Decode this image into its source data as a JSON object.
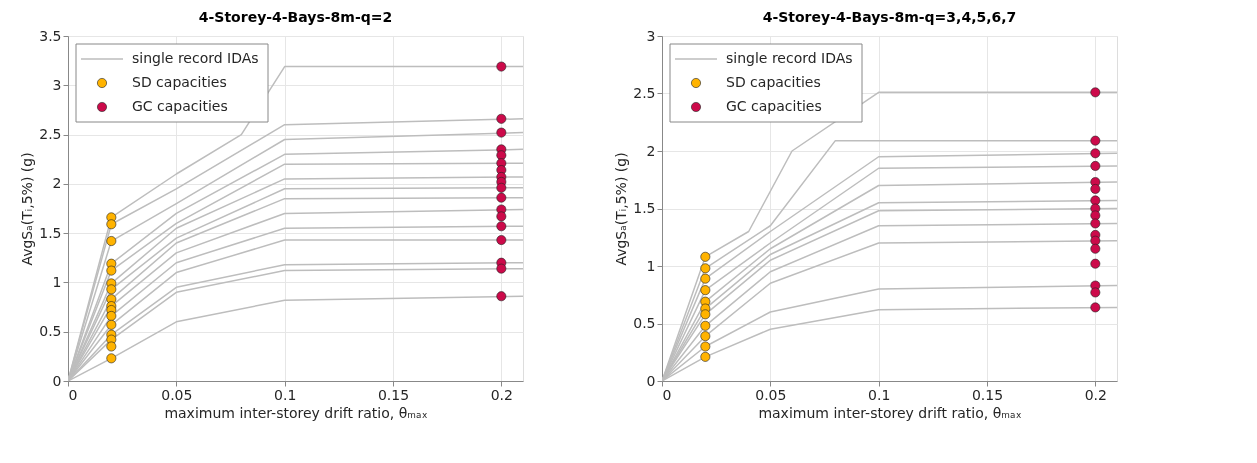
{
  "chart_data": [
    {
      "type": "line",
      "title": "4-Storey-4-Bays-8m-q=2",
      "xlabel": "maximum inter-storey drift ratio, θₘₐₓ",
      "ylabel": "AvgSₐ(Tᵢ,5%) (g)",
      "xlim": [
        0,
        0.21
      ],
      "ylim": [
        0,
        3.5
      ],
      "xticks": [
        0,
        0.05,
        0.1,
        0.15,
        0.2
      ],
      "yticks": [
        0,
        0.5,
        1,
        1.5,
        2,
        2.5,
        3,
        3.5
      ],
      "grid": true,
      "legend": "top left",
      "series": [
        {
          "name": "single record IDAs",
          "color": "#bdbdbd",
          "x": [
            0,
            0.02,
            0.05,
            0.08,
            0.1,
            0.21
          ],
          "values": [
            0,
            1.66,
            2.1,
            2.5,
            3.19,
            3.19
          ]
        },
        {
          "color": "#bdbdbd",
          "x": [
            0,
            0.02,
            0.05,
            0.1,
            0.21
          ],
          "values": [
            0,
            1.59,
            1.95,
            2.6,
            2.66
          ]
        },
        {
          "color": "#bdbdbd",
          "x": [
            0,
            0.02,
            0.05,
            0.1,
            0.21
          ],
          "values": [
            0,
            1.42,
            1.8,
            2.45,
            2.52
          ]
        },
        {
          "color": "#bdbdbd",
          "x": [
            0,
            0.02,
            0.05,
            0.1,
            0.21
          ],
          "values": [
            0,
            1.19,
            1.7,
            2.3,
            2.35
          ]
        },
        {
          "color": "#bdbdbd",
          "x": [
            0,
            0.02,
            0.05,
            0.1,
            0.21
          ],
          "values": [
            0,
            1.12,
            1.6,
            2.2,
            2.21
          ]
        },
        {
          "color": "#bdbdbd",
          "x": [
            0,
            0.02,
            0.05,
            0.1,
            0.21
          ],
          "values": [
            0,
            0.99,
            1.55,
            2.05,
            2.07
          ]
        },
        {
          "color": "#bdbdbd",
          "x": [
            0,
            0.02,
            0.05,
            0.1,
            0.21
          ],
          "values": [
            0,
            0.93,
            1.45,
            1.95,
            1.96
          ]
        },
        {
          "color": "#bdbdbd",
          "x": [
            0,
            0.02,
            0.05,
            0.1,
            0.21
          ],
          "values": [
            0,
            0.83,
            1.4,
            1.85,
            1.86
          ]
        },
        {
          "color": "#bdbdbd",
          "x": [
            0,
            0.02,
            0.05,
            0.1,
            0.21
          ],
          "values": [
            0,
            0.76,
            1.3,
            1.7,
            1.74
          ]
        },
        {
          "color": "#bdbdbd",
          "x": [
            0,
            0.02,
            0.05,
            0.1,
            0.21
          ],
          "values": [
            0,
            0.66,
            1.2,
            1.55,
            1.57
          ]
        },
        {
          "color": "#bdbdbd",
          "x": [
            0,
            0.02,
            0.05,
            0.1,
            0.21
          ],
          "values": [
            0,
            0.57,
            1.1,
            1.43,
            1.43
          ]
        },
        {
          "color": "#bdbdbd",
          "x": [
            0,
            0.02,
            0.05,
            0.1,
            0.21
          ],
          "values": [
            0,
            0.47,
            0.95,
            1.18,
            1.2
          ]
        },
        {
          "color": "#bdbdbd",
          "x": [
            0,
            0.02,
            0.05,
            0.1,
            0.21
          ],
          "values": [
            0,
            0.42,
            0.9,
            1.12,
            1.14
          ]
        },
        {
          "color": "#bdbdbd",
          "x": [
            0,
            0.02,
            0.05,
            0.1,
            0.21
          ],
          "values": [
            0,
            0.23,
            0.6,
            0.82,
            0.86
          ]
        },
        {
          "name": "SD capacities",
          "type": "scatter",
          "marker": "circle",
          "color": "#ffb300",
          "x": [
            0.02,
            0.02,
            0.02,
            0.02,
            0.02,
            0.02,
            0.02,
            0.02,
            0.02,
            0.02,
            0.02,
            0.02,
            0.02,
            0.02,
            0.02,
            0.02
          ],
          "values": [
            1.66,
            1.59,
            1.42,
            1.19,
            1.12,
            0.99,
            0.93,
            0.83,
            0.76,
            0.72,
            0.66,
            0.57,
            0.47,
            0.42,
            0.35,
            0.23
          ]
        },
        {
          "name": "GC capacities",
          "type": "scatter",
          "marker": "circle",
          "color": "#cc0a4a",
          "x": [
            0.2,
            0.2,
            0.2,
            0.2,
            0.2,
            0.2,
            0.2,
            0.2,
            0.2,
            0.2,
            0.2,
            0.2,
            0.2,
            0.2,
            0.2,
            0.2,
            0.2,
            0.2
          ],
          "values": [
            3.19,
            2.66,
            2.52,
            2.35,
            2.29,
            2.21,
            2.14,
            2.07,
            2.02,
            1.96,
            1.86,
            1.74,
            1.67,
            1.57,
            1.43,
            1.2,
            1.14,
            0.86
          ]
        }
      ]
    },
    {
      "type": "line",
      "title": "4-Storey-4-Bays-8m-q=3,4,5,6,7",
      "xlabel": "maximum inter-storey drift ratio, θₘₐₓ",
      "ylabel": "AvgSₐ(Tᵢ,5%) (g)",
      "xlim": [
        0,
        0.21
      ],
      "ylim": [
        0,
        3
      ],
      "xticks": [
        0,
        0.05,
        0.1,
        0.15,
        0.2
      ],
      "yticks": [
        0,
        0.5,
        1,
        1.5,
        2,
        2.5,
        3
      ],
      "grid": true,
      "legend": "top left",
      "series": [
        {
          "name": "single record IDAs",
          "color": "#bdbdbd",
          "x": [
            0,
            0.02,
            0.04,
            0.06,
            0.1,
            0.21
          ],
          "values": [
            0,
            1.08,
            1.3,
            2.0,
            2.51,
            2.51
          ]
        },
        {
          "color": "#bdbdbd",
          "x": [
            0,
            0.02,
            0.05,
            0.08,
            0.21
          ],
          "values": [
            0,
            0.98,
            1.35,
            2.09,
            2.09
          ]
        },
        {
          "color": "#bdbdbd",
          "x": [
            0,
            0.02,
            0.05,
            0.1,
            0.21
          ],
          "values": [
            0,
            0.89,
            1.3,
            1.95,
            1.98
          ]
        },
        {
          "color": "#bdbdbd",
          "x": [
            0,
            0.02,
            0.05,
            0.1,
            0.21
          ],
          "values": [
            0,
            0.79,
            1.2,
            1.85,
            1.87
          ]
        },
        {
          "color": "#bdbdbd",
          "x": [
            0,
            0.02,
            0.05,
            0.1,
            0.21
          ],
          "values": [
            0,
            0.69,
            1.15,
            1.7,
            1.73
          ]
        },
        {
          "color": "#bdbdbd",
          "x": [
            0,
            0.02,
            0.05,
            0.1,
            0.21
          ],
          "values": [
            0,
            0.63,
            1.1,
            1.55,
            1.57
          ]
        },
        {
          "color": "#bdbdbd",
          "x": [
            0,
            0.02,
            0.05,
            0.1,
            0.21
          ],
          "values": [
            0,
            0.58,
            1.05,
            1.48,
            1.5
          ]
        },
        {
          "color": "#bdbdbd",
          "x": [
            0,
            0.02,
            0.05,
            0.1,
            0.21
          ],
          "values": [
            0,
            0.48,
            0.95,
            1.35,
            1.37
          ]
        },
        {
          "color": "#bdbdbd",
          "x": [
            0,
            0.02,
            0.05,
            0.1,
            0.21
          ],
          "values": [
            0,
            0.39,
            0.85,
            1.2,
            1.22
          ]
        },
        {
          "color": "#bdbdbd",
          "x": [
            0,
            0.02,
            0.05,
            0.1,
            0.21
          ],
          "values": [
            0,
            0.3,
            0.6,
            0.8,
            0.83
          ]
        },
        {
          "color": "#bdbdbd",
          "x": [
            0,
            0.02,
            0.05,
            0.1,
            0.21
          ],
          "values": [
            0,
            0.21,
            0.45,
            0.62,
            0.64
          ]
        },
        {
          "name": "SD capacities",
          "type": "scatter",
          "marker": "circle",
          "color": "#ffb300",
          "x": [
            0.02,
            0.02,
            0.02,
            0.02,
            0.02,
            0.02,
            0.02,
            0.02,
            0.02,
            0.02,
            0.02
          ],
          "values": [
            1.08,
            0.98,
            0.89,
            0.79,
            0.69,
            0.63,
            0.58,
            0.48,
            0.39,
            0.3,
            0.21
          ]
        },
        {
          "name": "GC capacities",
          "type": "scatter",
          "marker": "circle",
          "color": "#cc0a4a",
          "x": [
            0.2,
            0.2,
            0.2,
            0.2,
            0.2,
            0.2,
            0.2,
            0.2,
            0.2,
            0.2,
            0.2,
            0.2,
            0.2,
            0.2,
            0.2,
            0.2,
            0.2
          ],
          "values": [
            2.51,
            2.09,
            1.98,
            1.87,
            1.73,
            1.67,
            1.57,
            1.5,
            1.44,
            1.37,
            1.27,
            1.22,
            1.15,
            1.02,
            0.83,
            0.77,
            0.64
          ]
        }
      ]
    }
  ]
}
